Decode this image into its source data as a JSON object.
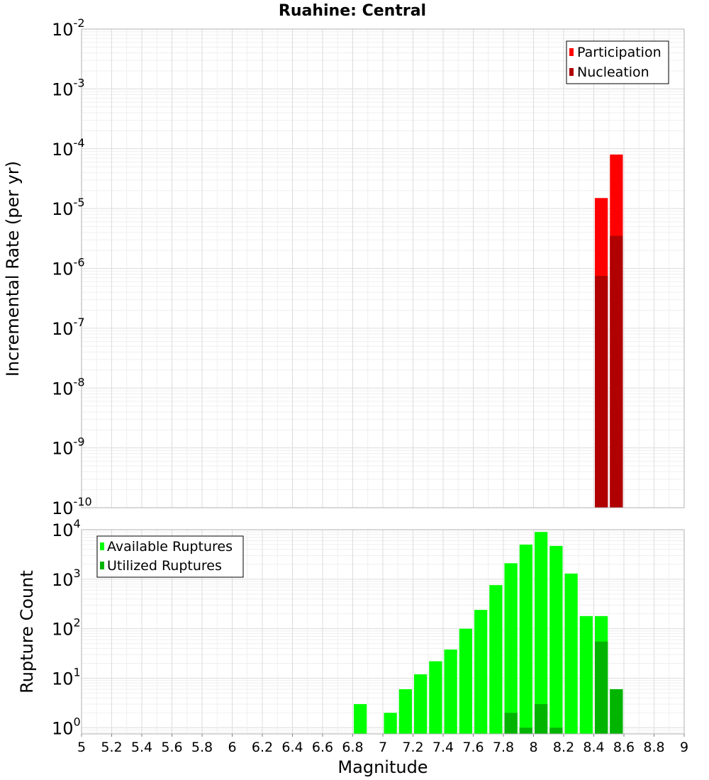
{
  "title": "Ruahine: Central",
  "colors": {
    "participation": "#ff0000",
    "nucleation": "#b00000",
    "available": "#00ff00",
    "utilized": "#00b400",
    "grid": "#dcdcdc",
    "frame": "#b0b0b0"
  },
  "chart_data": [
    {
      "type": "bar",
      "xlabel": "",
      "ylabel": "Incremental Rate (per yr)",
      "yscale": "log",
      "ylim": [
        1e-10,
        0.01
      ],
      "xlim": [
        5,
        9
      ],
      "grid": true,
      "legend_position": "top-right",
      "y_ticks": [
        {
          "base": "10",
          "exp": "-2",
          "value": 0.01
        },
        {
          "base": "10",
          "exp": "-3",
          "value": 0.001
        },
        {
          "base": "10",
          "exp": "-4",
          "value": 0.0001
        },
        {
          "base": "10",
          "exp": "-5",
          "value": 1e-05
        },
        {
          "base": "10",
          "exp": "-6",
          "value": 1e-06
        },
        {
          "base": "10",
          "exp": "-7",
          "value": 1e-07
        },
        {
          "base": "10",
          "exp": "-8",
          "value": 1e-08
        },
        {
          "base": "10",
          "exp": "-9",
          "value": 1e-09
        },
        {
          "base": "10",
          "exp": "-10",
          "value": 1e-10
        }
      ],
      "series": [
        {
          "name": "Participation",
          "color_key": "participation",
          "x": [
            8.45,
            8.55
          ],
          "values": [
            1.5e-05,
            8e-05
          ]
        },
        {
          "name": "Nucleation",
          "color_key": "nucleation",
          "x": [
            8.45,
            8.55
          ],
          "values": [
            7.5e-07,
            3.5e-06
          ]
        }
      ]
    },
    {
      "type": "bar",
      "xlabel": "Magnitude",
      "ylabel": "Rupture Count",
      "yscale": "log",
      "ylim": [
        0.75,
        10000
      ],
      "xlim": [
        5,
        9
      ],
      "grid": true,
      "legend_position": "top-left",
      "x_ticks": [
        "5",
        "5.2",
        "5.4",
        "5.6",
        "5.8",
        "6",
        "6.2",
        "6.4",
        "6.6",
        "6.8",
        "7",
        "7.2",
        "7.4",
        "7.6",
        "7.8",
        "8",
        "8.2",
        "8.4",
        "8.6",
        "8.8",
        "9"
      ],
      "y_ticks": [
        {
          "base": "10",
          "exp": "4",
          "value": 10000
        },
        {
          "base": "10",
          "exp": "3",
          "value": 1000
        },
        {
          "base": "10",
          "exp": "2",
          "value": 100
        },
        {
          "base": "10",
          "exp": "1",
          "value": 10
        },
        {
          "base": "10",
          "exp": "0",
          "value": 1
        }
      ],
      "series": [
        {
          "name": "Available Ruptures",
          "color_key": "available",
          "x": [
            6.85,
            7.05,
            7.15,
            7.25,
            7.35,
            7.45,
            7.55,
            7.65,
            7.75,
            7.85,
            7.95,
            8.05,
            8.15,
            8.25,
            8.35,
            8.45,
            8.55
          ],
          "values": [
            3,
            2,
            6,
            12,
            22,
            38,
            100,
            240,
            760,
            2100,
            5000,
            9000,
            4700,
            1300,
            180,
            180,
            6
          ]
        },
        {
          "name": "Utilized Ruptures",
          "color_key": "utilized",
          "x": [
            7.85,
            7.95,
            8.05,
            8.15,
            8.45,
            8.55
          ],
          "values": [
            2,
            1,
            3,
            1,
            55,
            6
          ]
        }
      ]
    }
  ]
}
